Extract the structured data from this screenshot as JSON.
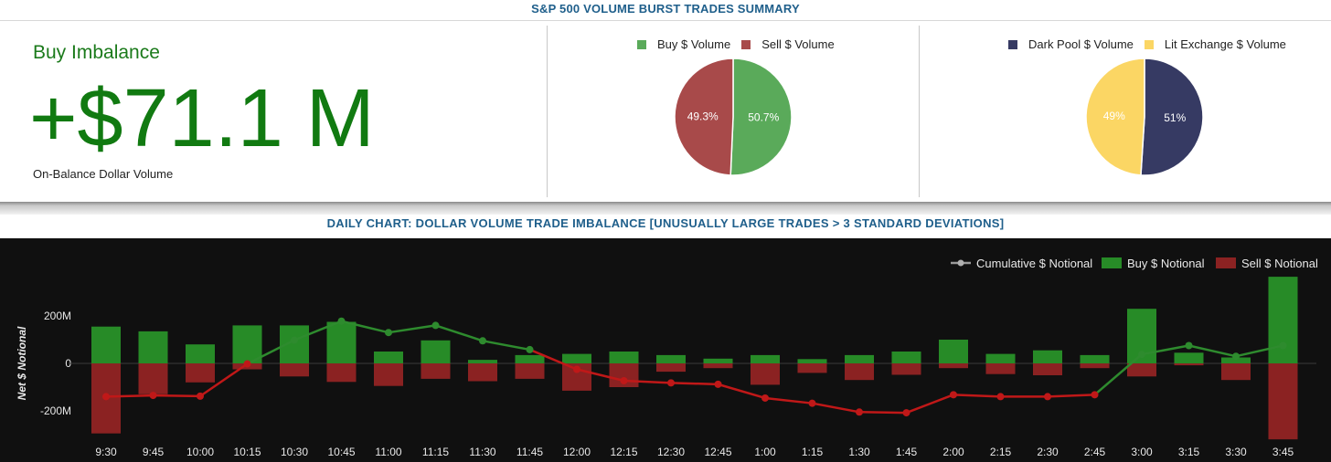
{
  "header": {
    "title": "S&P 500 VOLUME BURST TRADES SUMMARY"
  },
  "imbalance": {
    "label": "Buy Imbalance",
    "value": "+$71.1 M",
    "sublabel": "On-Balance Dollar Volume"
  },
  "colors": {
    "buy": "#5aaa5a",
    "sell": "#a84a4a",
    "dark_pool": "#363a63",
    "lit": "#fbd664",
    "bar_buy": "#278b27",
    "bar_sell": "#8b2222",
    "cum_up": "#2e8b2e",
    "cum_down": "#c01818",
    "brand_blue": "#1f5f8b"
  },
  "chart_data": [
    {
      "type": "pie",
      "legend": [
        "Buy $ Volume",
        "Sell $ Volume"
      ],
      "legend_position": "top",
      "slices": [
        {
          "name": "Buy $ Volume",
          "value": 50.7,
          "label": "50.7%"
        },
        {
          "name": "Sell $ Volume",
          "value": 49.3,
          "label": "49.3%"
        }
      ]
    },
    {
      "type": "pie",
      "legend": [
        "Dark Pool $ Volume",
        "Lit Exchange $ Volume"
      ],
      "legend_position": "top",
      "slices": [
        {
          "name": "Dark Pool $ Volume",
          "value": 51,
          "label": "51%"
        },
        {
          "name": "Lit Exchange $ Volume",
          "value": 49,
          "label": "49%"
        }
      ]
    },
    {
      "type": "bar",
      "title": "DAILY CHART: DOLLAR VOLUME TRADE IMBALANCE [UNUSUALLY LARGE TRADES > 3 STANDARD DEVIATIONS]",
      "ylabel": "Net $ Notional",
      "legend_position": "top-right",
      "grid": false,
      "yticks": [
        {
          "value": 200,
          "label": "200M"
        },
        {
          "value": 0,
          "label": "0"
        },
        {
          "value": -200,
          "label": "-200M"
        }
      ],
      "ylim": [
        -300,
        370
      ],
      "categories": [
        "9:30",
        "9:45",
        "10:00",
        "10:15",
        "10:30",
        "10:45",
        "11:00",
        "11:15",
        "11:30",
        "11:45",
        "12:00",
        "12:15",
        "12:30",
        "12:45",
        "1:00",
        "1:15",
        "1:30",
        "1:45",
        "2:00",
        "2:15",
        "2:30",
        "2:45",
        "3:00",
        "3:15",
        "3:30",
        "3:45"
      ],
      "series": [
        {
          "name": "Buy $ Notional",
          "values": [
            155,
            135,
            80,
            160,
            160,
            175,
            50,
            97,
            15,
            35,
            40,
            50,
            35,
            20,
            35,
            18,
            35,
            50,
            100,
            40,
            55,
            35,
            230,
            45,
            25,
            365
          ]
        },
        {
          "name": "Sell $ Notional",
          "values": [
            -295,
            -130,
            -80,
            -25,
            -55,
            -78,
            -95,
            -65,
            -75,
            -65,
            -115,
            -100,
            -35,
            -20,
            -90,
            -40,
            -70,
            -48,
            -20,
            -45,
            -50,
            -20,
            -55,
            -8,
            -70,
            -320
          ]
        },
        {
          "name": "Cumulative $ Notional",
          "values": [
            -140,
            -135,
            -138,
            -2,
            98,
            178,
            130,
            160,
            95,
            58,
            -25,
            -73,
            -82,
            -88,
            -146,
            -168,
            -205,
            -208,
            -132,
            -140,
            -140,
            -132,
            38,
            75,
            30,
            75
          ]
        }
      ]
    }
  ]
}
